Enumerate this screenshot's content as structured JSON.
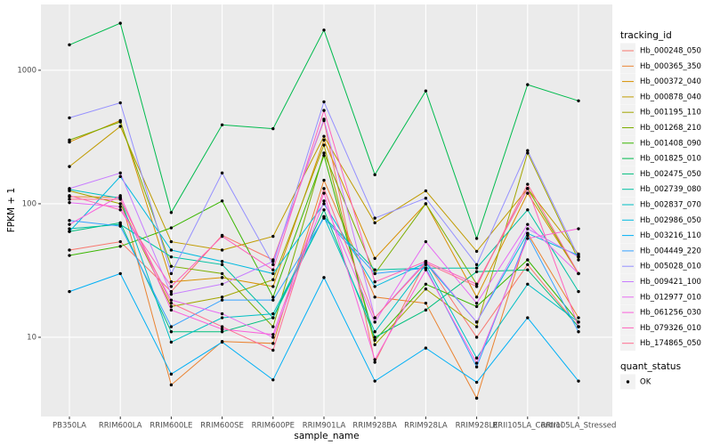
{
  "chart_data": {
    "type": "line",
    "x_label": "sample_name",
    "y_label": "FPKM + 1",
    "log_y": true,
    "grid": true,
    "legend_title": "tracking_id",
    "point_color": "#000000",
    "quant_status": {
      "title": "quant_status",
      "labels": [
        "OK"
      ]
    },
    "categories": [
      "PB350LA",
      "RRIM600LA",
      "RRIM600LE",
      "RRIM600SE",
      "RRIM600PE",
      "RRIM901LA",
      "RRIM928BA",
      "RRIM928LA",
      "RRIM928LE",
      "RRII105LA_Control",
      "RRII105LA_Stressed"
    ],
    "ylim": [
      2.55,
      3110
    ],
    "yticks": [
      10,
      100,
      1000
    ],
    "series": [
      {
        "name": "Hb_000248_050",
        "color": "#F8766D",
        "values": [
          45,
          52,
          22,
          58,
          38,
          420,
          6.5,
          37,
          10,
          35,
          12
        ]
      },
      {
        "name": "Hb_000365_350",
        "color": "#EA8331",
        "values": [
          113,
          112,
          4.4,
          9.3,
          9,
          150,
          20,
          18,
          3.5,
          60,
          14
        ]
      },
      {
        "name": "Hb_000372_040",
        "color": "#D89000",
        "values": [
          290,
          420,
          26,
          28,
          24,
          300,
          39,
          100,
          20,
          120,
          30
        ]
      },
      {
        "name": "Hb_000878_040",
        "color": "#C09B00",
        "values": [
          190,
          380,
          52,
          45,
          57,
          320,
          72,
          125,
          44,
          130,
          42
        ]
      },
      {
        "name": "Hb_001195_110",
        "color": "#A3A500",
        "values": [
          125,
          100,
          17,
          20,
          27,
          275,
          8.8,
          23,
          12,
          240,
          38
        ]
      },
      {
        "name": "Hb_001268_210",
        "color": "#7CAE00",
        "values": [
          300,
          410,
          34,
          30,
          12,
          240,
          30,
          100,
          25,
          130,
          30
        ]
      },
      {
        "name": "Hb_001408_090",
        "color": "#39B600",
        "values": [
          41,
          48,
          66,
          105,
          20,
          230,
          9.5,
          25,
          17,
          38,
          13
        ]
      },
      {
        "name": "Hb_001825_010",
        "color": "#00BB4E",
        "values": [
          1550,
          2250,
          86,
          390,
          365,
          2000,
          165,
          700,
          55,
          780,
          590
        ]
      },
      {
        "name": "Hb_002475_050",
        "color": "#00BF7D",
        "values": [
          62,
          72,
          11,
          11,
          14,
          90,
          10,
          16,
          31,
          32,
          12
        ]
      },
      {
        "name": "Hb_002739_080",
        "color": "#00C1A3",
        "values": [
          65,
          70,
          40,
          35,
          14,
          80,
          32,
          33,
          33,
          90,
          22
        ]
      },
      {
        "name": "Hb_002837_070",
        "color": "#00BFC4",
        "values": [
          128,
          110,
          9.2,
          14,
          15,
          80,
          11,
          35,
          7,
          25,
          13
        ]
      },
      {
        "name": "Hb_002986_050",
        "color": "#00BAE0",
        "values": [
          62,
          160,
          45,
          37,
          30,
          100,
          24,
          36,
          13,
          60,
          41
        ]
      },
      {
        "name": "Hb_003216_110",
        "color": "#00B0F6",
        "values": [
          22,
          30,
          5.3,
          9.2,
          4.8,
          28,
          4.7,
          8.3,
          4.6,
          14,
          4.7
        ]
      },
      {
        "name": "Hb_004449_220",
        "color": "#35A2FF",
        "values": [
          75,
          68,
          12,
          19,
          19,
          78,
          30,
          33,
          6,
          58,
          11
        ]
      },
      {
        "name": "Hb_005028_010",
        "color": "#9590FF",
        "values": [
          440,
          570,
          30,
          170,
          35,
          580,
          78,
          110,
          35,
          250,
          40
        ]
      },
      {
        "name": "Hb_009421_100",
        "color": "#C77CFF",
        "values": [
          130,
          170,
          21,
          25,
          37,
          430,
          14,
          37,
          13,
          65,
          40
        ]
      },
      {
        "name": "Hb_012977_010",
        "color": "#E76BF3",
        "values": [
          102,
          95,
          19,
          15,
          10,
          105,
          13,
          52,
          18,
          70,
          30
        ]
      },
      {
        "name": "Hb_061256_030",
        "color": "#FA62DB",
        "values": [
          70,
          115,
          16,
          11.5,
          10.5,
          120,
          6.8,
          32,
          6.4,
          55,
          65
        ]
      },
      {
        "name": "Hb_079326_010",
        "color": "#FF62BC",
        "values": [
          115,
          90,
          24,
          57,
          32,
          500,
          26,
          37,
          25,
          130,
          12
        ]
      },
      {
        "name": "Hb_174865_050",
        "color": "#FF6C91",
        "values": [
          108,
          108,
          18,
          12,
          8,
          130,
          14,
          36,
          24,
          140,
          30
        ]
      }
    ]
  }
}
